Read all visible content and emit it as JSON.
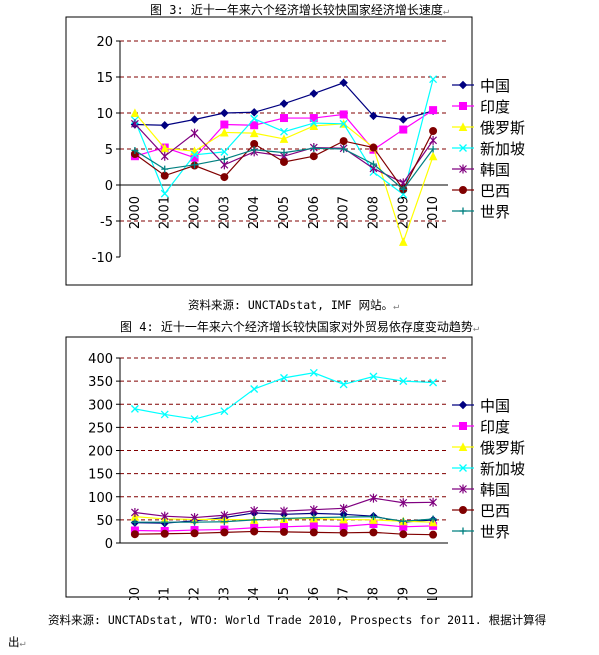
{
  "chart1": {
    "title": "图 3: 近十一年来六个经济增长较快国家经济增长速度",
    "source": "资料来源: UNCTADstat, IMF 网站。"
  },
  "chart2": {
    "title": "图 4: 近十一年来六个经济增长较快国家对外贸易依存度变动趋势",
    "source_line1": "资料来源: UNCTADstat, WTO: World Trade 2010, Prospects for 2011. 根据计算得",
    "source_line2": "出"
  },
  "paragraph_mark": "↵",
  "colors": {
    "中国": "#000080",
    "印度": "#ff00ff",
    "俄罗斯": "#ffff00",
    "新加坡": "#00ffff",
    "韩国": "#800080",
    "巴西": "#800000",
    "世界": "#008080"
  },
  "chart_data": [
    {
      "type": "line",
      "title": "图 3: 近十一年来六个经济增长较快国家经济增长速度",
      "categories": [
        "2000",
        "2001",
        "2002",
        "2003",
        "2004",
        "2005",
        "2006",
        "2007",
        "2008",
        "2009",
        "2010"
      ],
      "ylim": [
        -10,
        20
      ],
      "yticks": [
        -10,
        -5,
        0,
        5,
        10,
        15,
        20
      ],
      "grid": true,
      "legend": "right",
      "series": [
        {
          "name": "中国",
          "marker": "diamond",
          "values": [
            8.4,
            8.3,
            9.1,
            10.0,
            10.1,
            11.3,
            12.7,
            14.2,
            9.6,
            9.1,
            10.3
          ]
        },
        {
          "name": "印度",
          "marker": "square",
          "values": [
            4.0,
            5.2,
            3.8,
            8.4,
            8.3,
            9.3,
            9.3,
            9.8,
            4.9,
            7.7,
            10.4
          ]
        },
        {
          "name": "俄罗斯",
          "marker": "triangle",
          "values": [
            10.0,
            5.1,
            4.7,
            7.3,
            7.2,
            6.4,
            8.2,
            8.5,
            5.2,
            -7.9,
            4.0
          ]
        },
        {
          "name": "新加坡",
          "marker": "x",
          "values": [
            9.0,
            -1.2,
            4.2,
            4.6,
            9.2,
            7.4,
            8.6,
            8.5,
            1.8,
            -1.3,
            14.7
          ]
        },
        {
          "name": "韩国",
          "marker": "star",
          "values": [
            8.5,
            4.0,
            7.2,
            2.8,
            4.6,
            4.0,
            5.2,
            5.1,
            2.3,
            0.3,
            6.2
          ]
        },
        {
          "name": "巴西",
          "marker": "circle",
          "values": [
            4.3,
            1.3,
            2.7,
            1.1,
            5.7,
            3.2,
            4.0,
            6.1,
            5.2,
            -0.6,
            7.5
          ]
        },
        {
          "name": "世界",
          "marker": "plus",
          "values": [
            4.8,
            2.2,
            2.8,
            3.6,
            4.9,
            4.5,
            5.1,
            5.0,
            2.9,
            -0.6,
            5.0
          ]
        }
      ]
    },
    {
      "type": "line",
      "title": "图 4: 近十一年来六个经济增长较快国家对外贸易依存度变动趋势",
      "categories": [
        "2000",
        "2001",
        "2002",
        "2003",
        "2004",
        "2005",
        "2006",
        "2007",
        "2008",
        "2009",
        "2010"
      ],
      "ylim": [
        0,
        400
      ],
      "yticks": [
        0,
        50,
        100,
        150,
        200,
        250,
        300,
        350,
        400
      ],
      "grid": true,
      "legend": "right",
      "series": [
        {
          "name": "中国",
          "marker": "diamond",
          "values": [
            44,
            43,
            48,
            55,
            65,
            62,
            64,
            62,
            58,
            45,
            50
          ]
        },
        {
          "name": "印度",
          "marker": "square",
          "values": [
            27,
            26,
            28,
            29,
            33,
            35,
            37,
            36,
            41,
            35,
            37
          ]
        },
        {
          "name": "俄罗斯",
          "marker": "triangle",
          "values": [
            57,
            52,
            51,
            51,
            50,
            52,
            53,
            51,
            50,
            47,
            45
          ]
        },
        {
          "name": "新加坡",
          "marker": "x",
          "values": [
            290,
            278,
            268,
            285,
            333,
            357,
            368,
            343,
            360,
            350,
            347
          ]
        },
        {
          "name": "韩国",
          "marker": "star",
          "values": [
            66,
            58,
            55,
            60,
            70,
            69,
            72,
            75,
            97,
            87,
            88
          ]
        },
        {
          "name": "巴西",
          "marker": "circle",
          "values": [
            19,
            20,
            21,
            23,
            25,
            24,
            23,
            22,
            23,
            19,
            18
          ]
        },
        {
          "name": "世界",
          "marker": "plus",
          "values": [
            45,
            45,
            45,
            46,
            50,
            53,
            55,
            56,
            57,
            47,
            52
          ]
        }
      ]
    }
  ]
}
